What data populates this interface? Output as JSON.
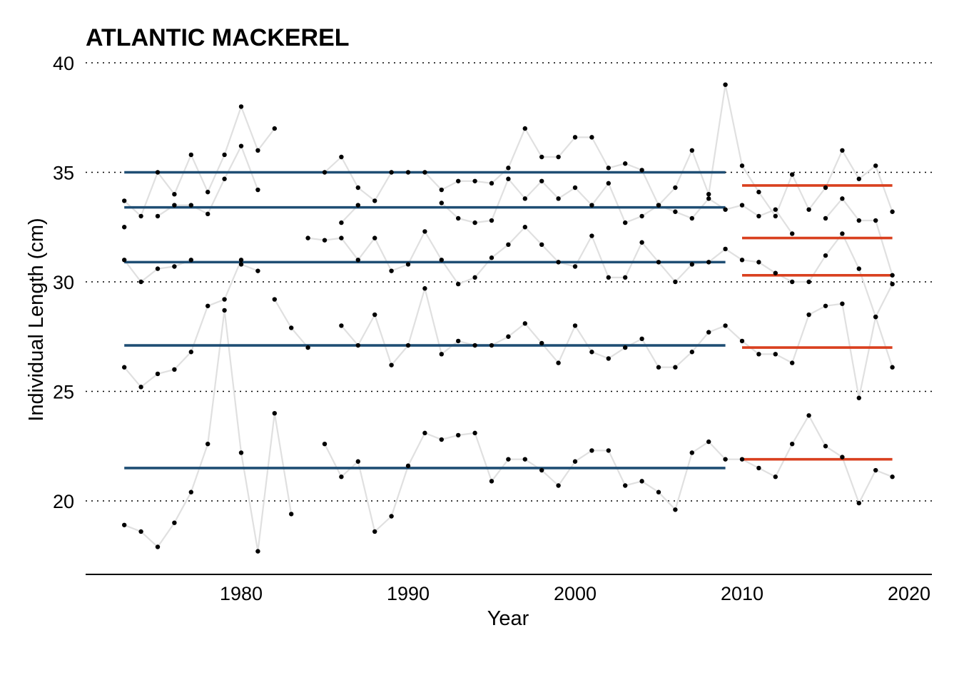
{
  "chart_data": {
    "type": "line",
    "title": "ATLANTIC MACKEREL",
    "xlabel": "Year",
    "ylabel": "Individual Length (cm)",
    "xlim": [
      1970.7,
      2021.4
    ],
    "ylim": [
      16.6,
      40.6
    ],
    "xticks": [
      1980,
      1990,
      2000,
      2010,
      2020
    ],
    "yticks": [
      20,
      25,
      30,
      35,
      40
    ],
    "grid": "horizontal dotted",
    "colors": {
      "points": "#000000",
      "connector": "#e0e0e0",
      "period1_mean": "#1f4e74",
      "period2_mean": "#d9401f",
      "grid": "#000000"
    },
    "years": [
      1973,
      1974,
      1975,
      1976,
      1977,
      1978,
      1979,
      1980,
      1981,
      1982,
      1983,
      1984,
      1985,
      1986,
      1987,
      1988,
      1989,
      1990,
      1991,
      1992,
      1993,
      1994,
      1995,
      1996,
      1997,
      1998,
      1999,
      2000,
      2001,
      2002,
      2003,
      2004,
      2005,
      2006,
      2007,
      2008,
      2009,
      2010,
      2011,
      2012,
      2013,
      2014,
      2015,
      2016,
      2017,
      2018,
      2019
    ],
    "series": [
      {
        "values": [
          33.7,
          33.0,
          35.0,
          34.0,
          35.8,
          34.1,
          35.8,
          38.0,
          36.0,
          37.0,
          null,
          null,
          35.0,
          35.7,
          34.3,
          33.7,
          35.0,
          35.0,
          35.0,
          34.2,
          34.6,
          34.6,
          34.5,
          35.2,
          37.0,
          35.7,
          35.7,
          36.6,
          36.6,
          35.2,
          35.4,
          35.1,
          33.5,
          34.3,
          36.0,
          34.0,
          39.0,
          35.3,
          34.1,
          33.0,
          34.9,
          33.3,
          34.3,
          36.0,
          34.7,
          35.3,
          33.2
        ]
      },
      {
        "values": [
          32.5,
          null,
          33.0,
          33.5,
          33.5,
          33.1,
          34.7,
          36.2,
          34.2,
          null,
          null,
          null,
          null,
          32.7,
          33.5,
          null,
          null,
          null,
          null,
          33.6,
          32.9,
          32.7,
          32.8,
          34.7,
          33.8,
          34.6,
          33.8,
          34.3,
          33.5,
          34.5,
          32.7,
          33.0,
          33.5,
          33.2,
          32.9,
          33.8,
          33.3,
          33.5,
          33.0,
          33.3,
          32.2,
          null,
          32.9,
          33.8,
          32.8,
          32.8,
          30.3
        ]
      },
      {
        "values": [
          31.0,
          30.0,
          30.6,
          30.7,
          31.0,
          null,
          null,
          30.8,
          30.5,
          null,
          null,
          32.0,
          31.9,
          32.0,
          31.0,
          32.0,
          30.5,
          30.8,
          32.3,
          31.0,
          29.9,
          30.2,
          31.1,
          31.7,
          32.5,
          31.7,
          30.9,
          30.7,
          32.1,
          30.2,
          30.2,
          31.8,
          30.9,
          30.0,
          30.8,
          30.9,
          31.5,
          31.0,
          30.9,
          30.4,
          30.0,
          30.0,
          31.2,
          32.2,
          30.6,
          28.4,
          29.9
        ]
      },
      {
        "values": [
          26.1,
          25.2,
          25.8,
          26.0,
          26.8,
          28.9,
          29.2,
          31.0,
          null,
          29.2,
          27.9,
          27.0,
          null,
          28.0,
          27.1,
          28.5,
          26.2,
          27.1,
          29.7,
          26.7,
          27.3,
          27.1,
          27.1,
          27.5,
          28.1,
          27.2,
          26.3,
          28.0,
          26.8,
          26.5,
          27.0,
          27.4,
          26.1,
          26.1,
          26.8,
          27.7,
          28.0,
          27.3,
          26.7,
          26.7,
          26.3,
          28.5,
          28.9,
          29.0,
          24.7,
          28.4,
          26.1
        ]
      },
      {
        "values": [
          18.9,
          18.6,
          17.9,
          19.0,
          20.4,
          22.6,
          28.7,
          22.2,
          17.7,
          24.0,
          19.4,
          null,
          22.6,
          21.1,
          21.8,
          18.6,
          19.3,
          21.6,
          23.1,
          22.8,
          23.0,
          23.1,
          20.9,
          21.9,
          21.9,
          21.4,
          20.7,
          21.8,
          22.3,
          22.3,
          20.7,
          20.9,
          20.4,
          19.6,
          22.2,
          22.7,
          21.9,
          21.9,
          21.5,
          21.1,
          22.6,
          23.9,
          22.5,
          22.0,
          19.9,
          21.4,
          21.1
        ]
      }
    ],
    "period1": {
      "start": 1973,
      "end": 2009,
      "means": [
        35.0,
        33.4,
        30.9,
        27.1,
        21.5
      ]
    },
    "period2": {
      "start": 2010,
      "end": 2019,
      "means": [
        34.4,
        32.0,
        30.3,
        27.0,
        21.9
      ]
    }
  }
}
